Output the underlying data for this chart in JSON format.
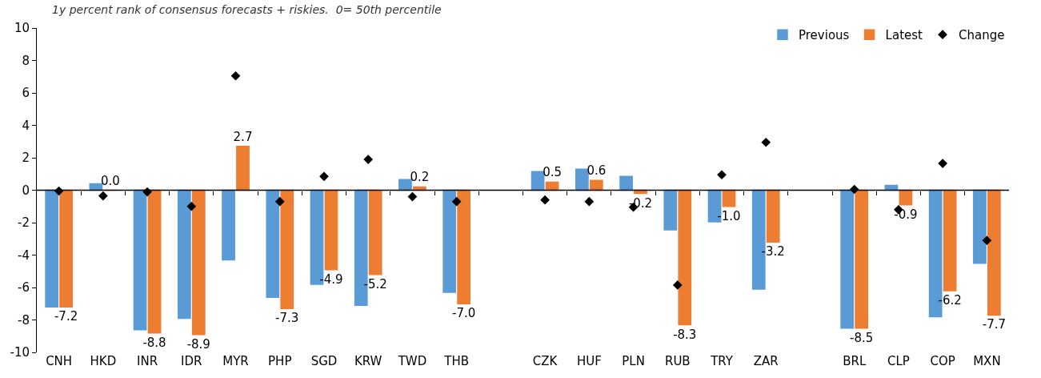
{
  "chart_data": {
    "type": "bar",
    "title": "1y percent rank of consensus forecasts + riskies.  0= 50th percentile",
    "categories": [
      "CNH",
      "HKD",
      "INR",
      "IDR",
      "MYR",
      "PHP",
      "SGD",
      "KRW",
      "TWD",
      "THB",
      null,
      "CZK",
      "HUF",
      "PLN",
      "RUB",
      "TRY",
      "ZAR",
      null,
      "BRL",
      "CLP",
      "COP",
      "MXN"
    ],
    "series": [
      {
        "name": "Previous",
        "color": "#5b9bd5",
        "values": [
          -7.2,
          0.4,
          -8.6,
          -7.9,
          -4.3,
          -6.6,
          -5.8,
          -7.1,
          0.65,
          -6.3,
          null,
          1.15,
          1.3,
          0.85,
          -2.45,
          -1.95,
          -6.1,
          null,
          -8.5,
          0.3,
          -7.8,
          -4.5
        ]
      },
      {
        "name": "Latest",
        "color": "#ed7d31",
        "values": [
          -7.2,
          0.0,
          -8.8,
          -8.9,
          2.7,
          -7.3,
          -4.9,
          -5.2,
          0.2,
          -7.0,
          null,
          0.5,
          0.6,
          -0.2,
          -8.3,
          -1.0,
          -3.2,
          null,
          -8.5,
          -0.9,
          -6.2,
          -7.7
        ],
        "value_labels": [
          "-7.2",
          "0.0",
          "-8.8",
          "-8.9",
          "2.7",
          "-7.3",
          "-4.9",
          "-5.2",
          "0.2",
          "-7.0",
          null,
          "0.5",
          "0.6",
          "-0.2",
          "-8.3",
          "-1.0",
          "-3.2",
          null,
          "-8.5",
          "-0.9",
          "-6.2",
          "-7.7"
        ]
      },
      {
        "name": "Change",
        "type": "scatter",
        "color": "#000000",
        "marker": "diamond",
        "values": [
          -0.05,
          -0.35,
          -0.1,
          -1.0,
          7.05,
          -0.7,
          0.85,
          1.9,
          -0.4,
          -0.7,
          null,
          -0.6,
          -0.7,
          -1.05,
          -5.85,
          0.95,
          2.95,
          null,
          0.05,
          -1.2,
          1.65,
          -3.1
        ]
      }
    ],
    "ref_lines": [
      {
        "axis": "y",
        "value": 0,
        "color": "#000000"
      }
    ],
    "ylim": [
      -10,
      10
    ],
    "yticks": [
      -10,
      -8,
      -6,
      -4,
      -2,
      0,
      2,
      4,
      6,
      8,
      10
    ],
    "legend": "top right"
  }
}
